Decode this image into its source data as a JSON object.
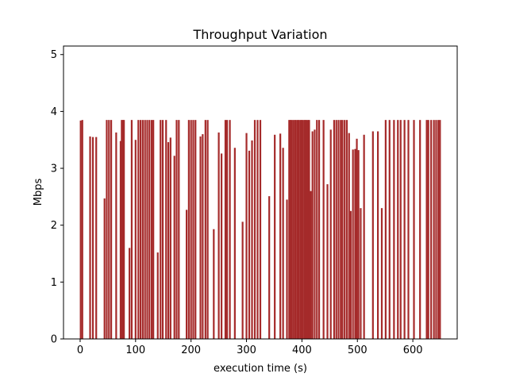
{
  "chart_data": {
    "type": "bar",
    "title": "Throughput Variation",
    "xlabel": "execution time (s)",
    "ylabel": "Mbps",
    "xlim": [
      -30,
      680
    ],
    "ylim": [
      0,
      5.15
    ],
    "xticks": [
      0,
      100,
      200,
      300,
      400,
      500,
      600
    ],
    "yticks": [
      0,
      1,
      2,
      3,
      4,
      5
    ],
    "bar_color": "#a52a2a",
    "grid": false,
    "x": [
      1,
      4,
      18,
      23,
      29,
      44,
      48,
      52,
      56,
      65,
      73,
      75,
      77,
      79,
      89,
      93,
      100,
      105,
      109,
      113,
      117,
      121,
      125,
      129,
      132,
      140,
      145,
      149,
      155,
      159,
      163,
      170,
      174,
      178,
      192,
      196,
      200,
      204,
      208,
      217,
      221,
      226,
      230,
      241,
      250,
      255,
      262,
      265,
      270,
      279,
      293,
      300,
      305,
      310,
      315,
      320,
      325,
      341,
      351,
      361,
      366,
      373,
      377,
      379,
      381,
      384,
      387,
      389,
      392,
      394,
      397,
      399,
      401,
      404,
      406,
      408,
      411,
      413,
      416,
      419,
      423,
      427,
      431,
      439,
      446,
      452,
      458,
      462,
      466,
      470,
      473,
      477,
      481,
      485,
      488,
      492,
      496,
      499,
      502,
      506,
      512,
      528,
      537,
      544,
      551,
      558,
      566,
      573,
      578,
      585,
      592,
      602,
      613,
      625,
      628,
      633,
      638,
      642,
      646,
      649
    ],
    "values": [
      3.84,
      3.85,
      3.56,
      3.55,
      3.55,
      2.47,
      3.85,
      3.85,
      3.85,
      3.63,
      3.48,
      3.85,
      3.85,
      3.85,
      1.6,
      3.85,
      3.5,
      3.85,
      3.85,
      3.85,
      3.85,
      3.85,
      3.85,
      3.85,
      3.85,
      1.52,
      3.85,
      3.85,
      3.85,
      3.46,
      3.54,
      3.22,
      3.85,
      3.85,
      2.27,
      3.85,
      3.85,
      3.85,
      3.85,
      3.56,
      3.6,
      3.85,
      3.85,
      1.93,
      3.63,
      3.26,
      3.85,
      3.85,
      3.85,
      3.36,
      2.06,
      3.62,
      3.31,
      3.49,
      3.85,
      3.85,
      3.85,
      2.51,
      3.59,
      3.61,
      3.36,
      2.45,
      3.85,
      3.85,
      3.85,
      3.85,
      3.85,
      3.85,
      3.85,
      3.85,
      3.85,
      3.85,
      3.85,
      3.85,
      3.85,
      3.85,
      3.85,
      3.85,
      2.6,
      3.65,
      3.68,
      3.85,
      3.85,
      3.85,
      2.72,
      3.68,
      3.85,
      3.85,
      3.85,
      3.85,
      3.85,
      3.85,
      3.85,
      3.62,
      2.25,
      3.33,
      3.34,
      3.52,
      3.32,
      2.3,
      3.59,
      3.65,
      3.65,
      2.3,
      3.85,
      3.85,
      3.85,
      3.85,
      3.85,
      3.85,
      3.85,
      3.85,
      3.85,
      3.85,
      3.85,
      3.85,
      3.85,
      3.85,
      3.85,
      3.85
    ]
  }
}
